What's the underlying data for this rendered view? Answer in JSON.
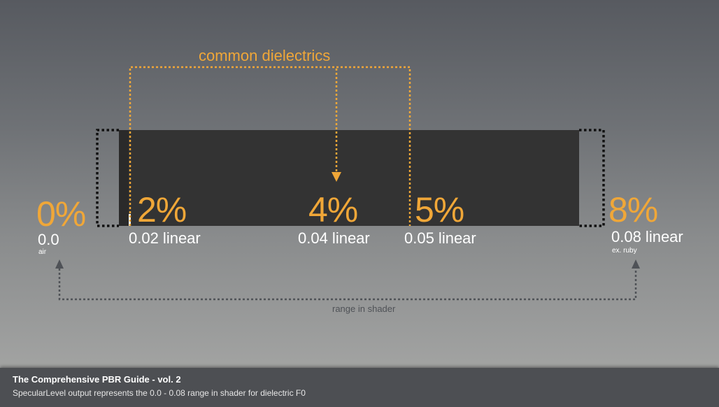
{
  "header": {
    "text": "common dielectrics"
  },
  "markers": [
    {
      "percent": "0%",
      "linear": "0.0",
      "note": "air"
    },
    {
      "percent": "2%",
      "linear": "0.02 linear"
    },
    {
      "percent": "4%",
      "linear": "0.04 linear"
    },
    {
      "percent": "5%",
      "linear": "0.05 linear"
    },
    {
      "percent": "8%",
      "linear": "0.08 linear",
      "note": "ex. ruby"
    }
  ],
  "range_label": "range in shader",
  "caption": {
    "title": "The Comprehensive PBR Guide - vol. 2",
    "text": "SpecularLevel output represents the 0.0 - 0.08 range in shader for dielectric F0"
  },
  "colors": {
    "accent": "#f0a738",
    "bar": "#333333",
    "range_line": "#4f5257",
    "caption_bg": "#4d4f53"
  }
}
